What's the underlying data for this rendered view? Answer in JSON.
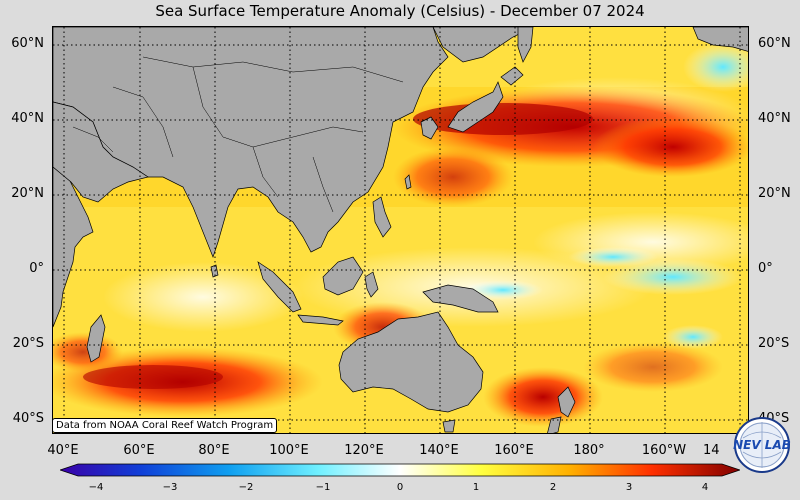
{
  "title": "Sea Surface Temperature Anomaly (Celsius) - December 07 2024",
  "lat_labels": [
    "60°N",
    "40°N",
    "20°N",
    "0°",
    "20°S",
    "40°S"
  ],
  "lon_labels": [
    "40°E",
    "60°E",
    "80°E",
    "100°E",
    "120°E",
    "140°E",
    "160°E",
    "180°",
    "160°W",
    "14"
  ],
  "credit": "Data from NOAA Coral Reef Watch Program",
  "colorbar": {
    "ticks": [
      "−4",
      "−3",
      "−2",
      "−1",
      "0",
      "1",
      "2",
      "3",
      "4"
    ],
    "colors": [
      "#3a00a8",
      "#1040d8",
      "#10a0f0",
      "#70f0ff",
      "#ffffff",
      "#ffff40",
      "#ffb000",
      "#ff4000",
      "#c00000",
      "#800000"
    ]
  },
  "logo": {
    "text": "NEV LAB"
  },
  "colors": {
    "land": "#a9a9a9",
    "ocean_base": "#ffe44a"
  }
}
